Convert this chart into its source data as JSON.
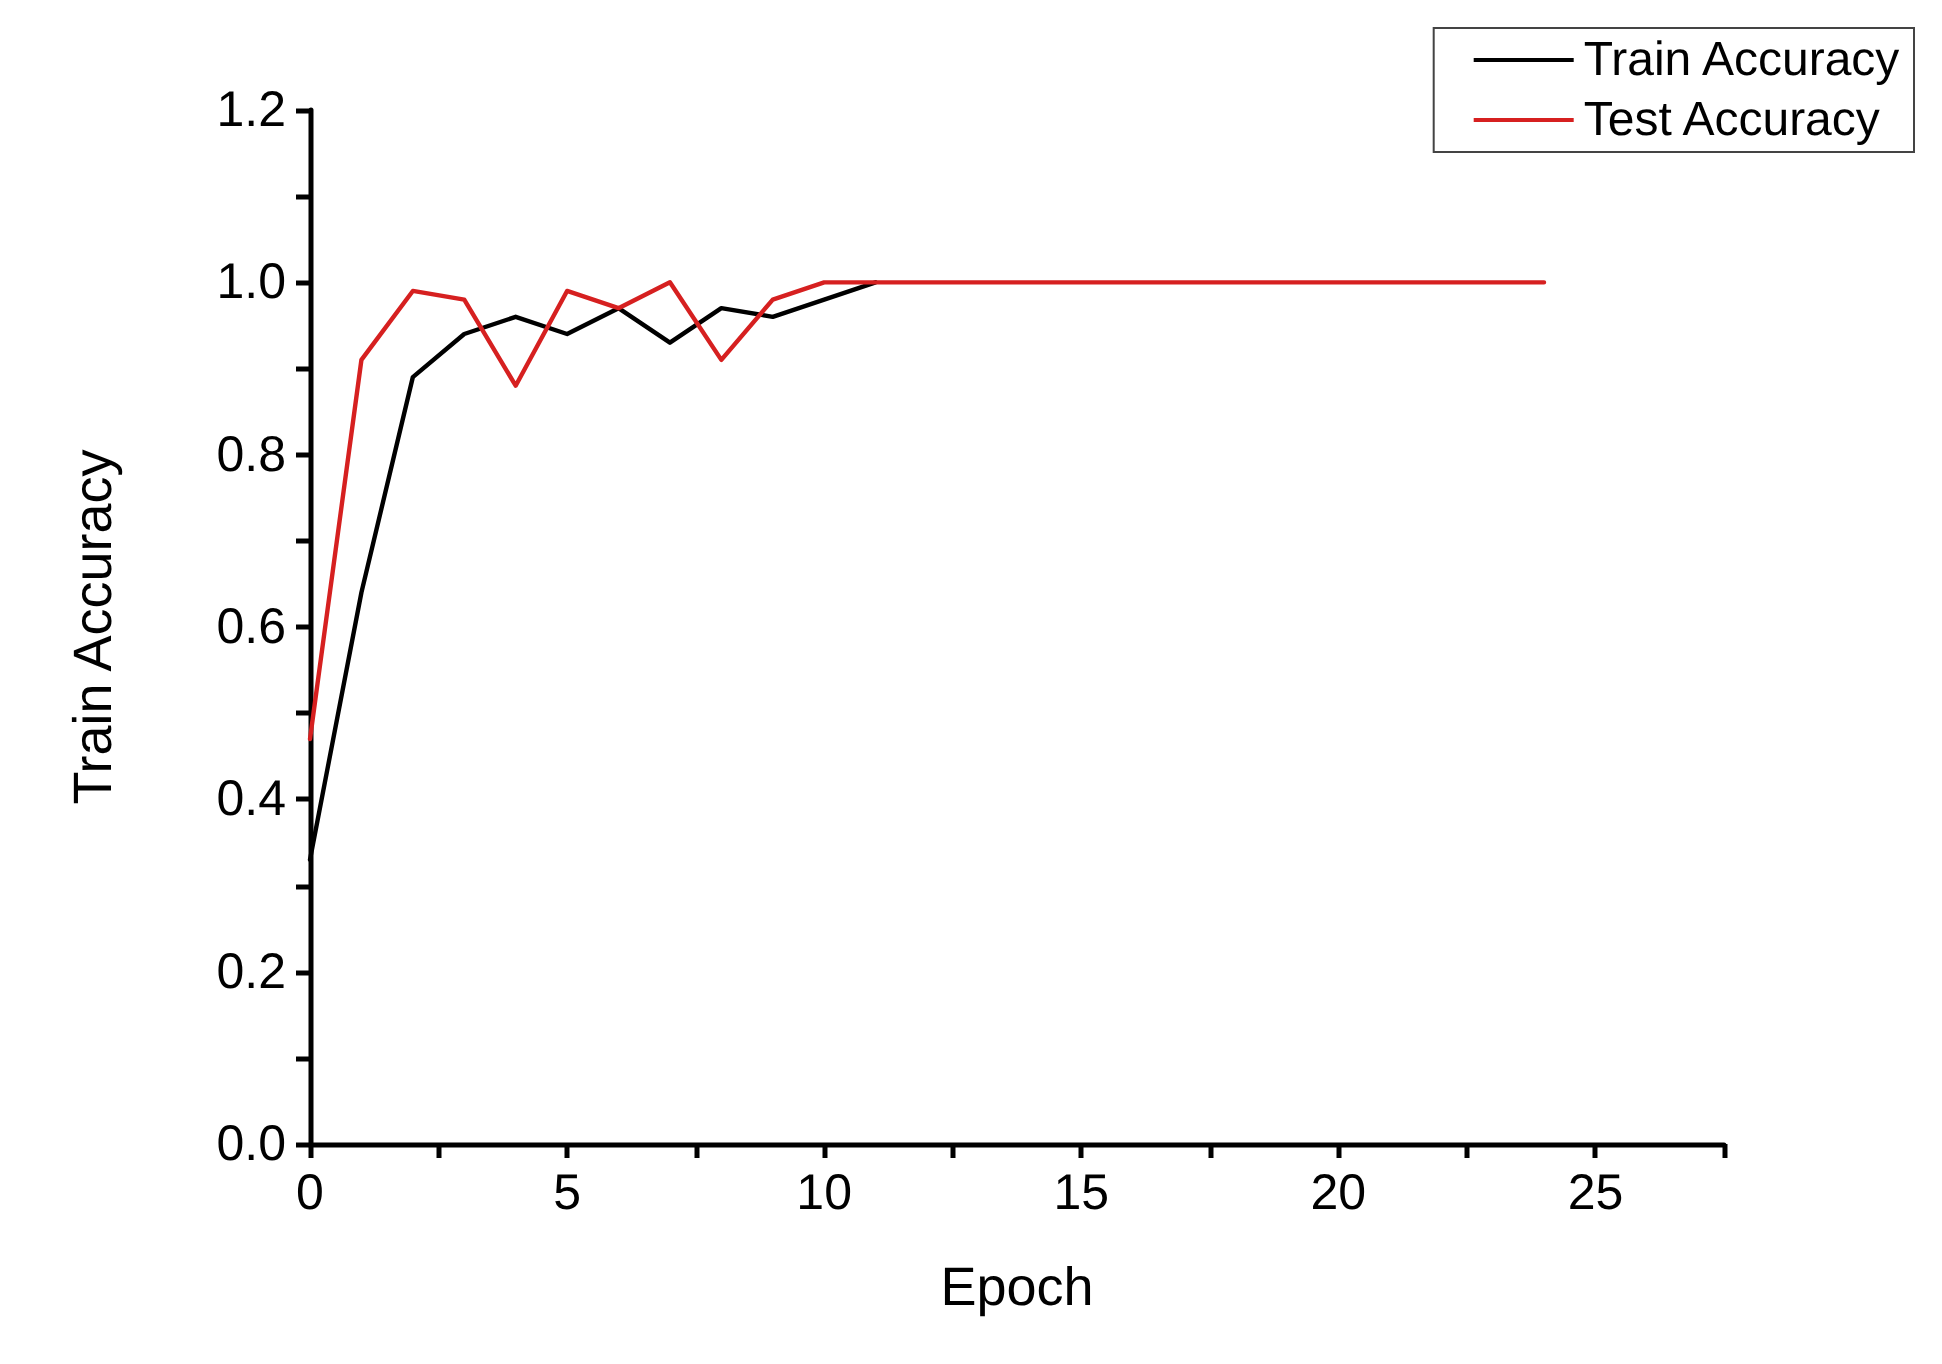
{
  "chart_data": {
    "type": "line",
    "xlabel": "Epoch",
    "ylabel": "Train Accuracy",
    "xlim": [
      0,
      27.5
    ],
    "xticks": [
      0,
      5,
      10,
      15,
      20,
      25
    ],
    "ylim": [
      0,
      1.2
    ],
    "yticks": [
      {
        "value": 0,
        "label": "0.0"
      },
      0.2,
      0.4,
      0.6,
      0.8,
      {
        "value": 1,
        "label": "1.0"
      },
      1.2
    ],
    "legend": "top right",
    "grid": false,
    "marker": "none",
    "line_style": "solid",
    "series": [
      {
        "name": "Train Accuracy",
        "color": "#000000",
        "x": [
          0,
          1,
          2,
          3,
          4,
          5,
          6,
          7,
          8,
          9,
          10,
          11
        ],
        "values": [
          0.33,
          0.64,
          0.89,
          0.94,
          0.96,
          0.94,
          0.97,
          0.93,
          0.97,
          0.96,
          0.98,
          1.0
        ]
      },
      {
        "name": "Test Accuracy",
        "color": "#d62020",
        "x": [
          0,
          1,
          2,
          3,
          4,
          5,
          6,
          7,
          8,
          9,
          10,
          11,
          12,
          13,
          14,
          15,
          16,
          17,
          18,
          19,
          20,
          21,
          22,
          23,
          24
        ],
        "values": [
          0.47,
          0.91,
          0.99,
          0.98,
          0.88,
          0.99,
          0.97,
          1.0,
          0.91,
          0.98,
          1.0,
          1.0,
          1.0,
          1.0,
          1.0,
          1.0,
          1.0,
          1.0,
          1.0,
          1.0,
          1.0,
          1.0,
          1.0,
          1.0,
          1.0
        ]
      }
    ]
  }
}
